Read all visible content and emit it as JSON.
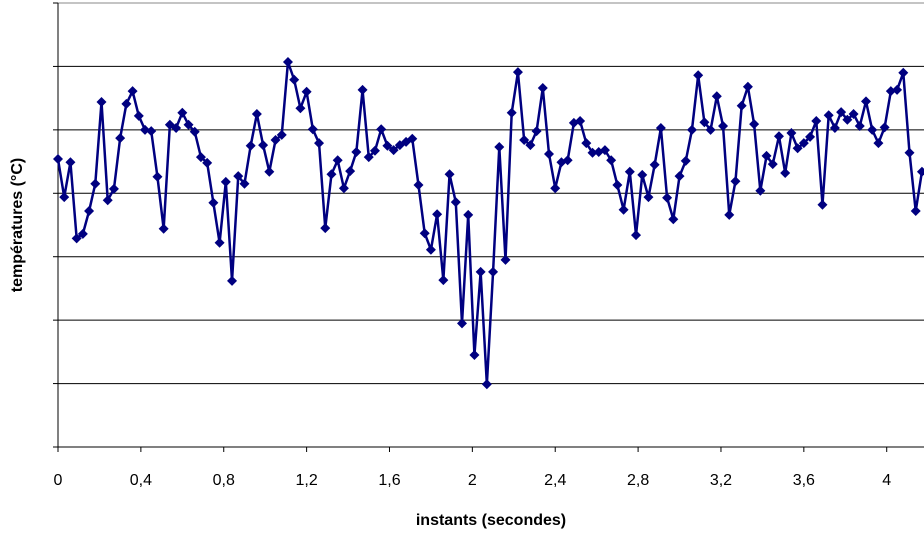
{
  "chart_data": {
    "type": "line",
    "x_label": "instants (secondes)",
    "y_label": "températures (°C)",
    "x": [
      0,
      0.03,
      0.06,
      0.09,
      0.12,
      0.15,
      0.18,
      0.21,
      0.24,
      0.27,
      0.3,
      0.33,
      0.36,
      0.39,
      0.42,
      0.45,
      0.48,
      0.51,
      0.54,
      0.57,
      0.6,
      0.63,
      0.66,
      0.69,
      0.72,
      0.75,
      0.78,
      0.81,
      0.84,
      0.87,
      0.9,
      0.93,
      0.96,
      0.99,
      1.02,
      1.05,
      1.08,
      1.11,
      1.14,
      1.17,
      1.2,
      1.23,
      1.26,
      1.29,
      1.32,
      1.35,
      1.38,
      1.41,
      1.44,
      1.47,
      1.5,
      1.53,
      1.56,
      1.59,
      1.62,
      1.65,
      1.68,
      1.71,
      1.74,
      1.77,
      1.8,
      1.83,
      1.86,
      1.89,
      1.92,
      1.95,
      1.98,
      2.01,
      2.04,
      2.07,
      2.1,
      2.13,
      2.16,
      2.19,
      2.22,
      2.25,
      2.28,
      2.31,
      2.34,
      2.37,
      2.4,
      2.43,
      2.46,
      2.49,
      2.52,
      2.55,
      2.58,
      2.61,
      2.64,
      2.67,
      2.7,
      2.73,
      2.76,
      2.79,
      2.82,
      2.85,
      2.88,
      2.91,
      2.94,
      2.97,
      3,
      3.03,
      3.06,
      3.09,
      3.12,
      3.15,
      3.18,
      3.21,
      3.24,
      3.27,
      3.3,
      3.33,
      3.36,
      3.39,
      3.42,
      3.45,
      3.48,
      3.51,
      3.54,
      3.57,
      3.6,
      3.63,
      3.66,
      3.69,
      3.72,
      3.75,
      3.78,
      3.81,
      3.84,
      3.87,
      3.9,
      3.93,
      3.96,
      3.99,
      4.02,
      4.05,
      4.08,
      4.11,
      4.14,
      4.17
    ],
    "series": [
      {
        "color": "#000080",
        "values": [
          4.54,
          3.94,
          4.49,
          3.29,
          3.36,
          3.72,
          4.15,
          5.44,
          3.89,
          4.07,
          4.87,
          5.41,
          5.61,
          5.22,
          5.0,
          4.98,
          4.26,
          3.44,
          5.08,
          5.03,
          5.27,
          5.08,
          4.97,
          4.57,
          4.48,
          3.85,
          3.22,
          4.18,
          2.62,
          4.27,
          4.15,
          4.75,
          5.25,
          4.76,
          4.34,
          4.84,
          4.92,
          6.07,
          5.79,
          5.34,
          5.6,
          5.01,
          4.79,
          3.45,
          4.3,
          4.52,
          4.08,
          4.35,
          4.65,
          5.63,
          4.57,
          4.67,
          5.01,
          4.75,
          4.68,
          4.76,
          4.81,
          4.86,
          4.13,
          3.37,
          3.11,
          3.67,
          2.63,
          4.3,
          3.86,
          1.95,
          3.66,
          1.45,
          2.76,
          0.99,
          2.76,
          4.73,
          2.95,
          5.27,
          5.91,
          4.84,
          4.76,
          4.98,
          5.66,
          4.62,
          4.08,
          4.49,
          4.52,
          5.11,
          5.14,
          4.79,
          4.64,
          4.65,
          4.68,
          4.52,
          4.13,
          3.74,
          4.34,
          3.34,
          4.29,
          3.94,
          4.45,
          5.03,
          3.93,
          3.59,
          4.27,
          4.51,
          5.0,
          5.86,
          5.12,
          5.0,
          5.53,
          5.06,
          3.66,
          4.19,
          5.38,
          5.68,
          5.09,
          4.04,
          4.59,
          4.46,
          4.9,
          4.32,
          4.95,
          4.71,
          4.79,
          4.89,
          5.14,
          3.82,
          5.23,
          5.03,
          5.28,
          5.16,
          5.25,
          5.06,
          5.45,
          5.0,
          4.79,
          5.04,
          5.61,
          5.63,
          5.9,
          4.64,
          3.72,
          4.34
        ]
      }
    ],
    "xlim": [
      0,
      4.18
    ],
    "xticks": [
      0,
      {
        "value": 0.4,
        "label": "0,4"
      },
      {
        "value": 0.8,
        "label": "0,8"
      },
      {
        "value": 1.2,
        "label": "1,2"
      },
      {
        "value": 1.6,
        "label": "1,6"
      },
      2,
      {
        "value": 2.4,
        "label": "2,4"
      },
      {
        "value": 2.8,
        "label": "2,8"
      },
      {
        "value": 3.2,
        "label": "3,2"
      },
      {
        "value": 3.6,
        "label": "3,6"
      },
      4
    ],
    "ylim": [
      0,
      7
    ],
    "yticks": [
      0,
      1,
      2,
      3,
      4,
      5,
      6,
      7
    ],
    "grid": true,
    "marker": "diamond"
  }
}
